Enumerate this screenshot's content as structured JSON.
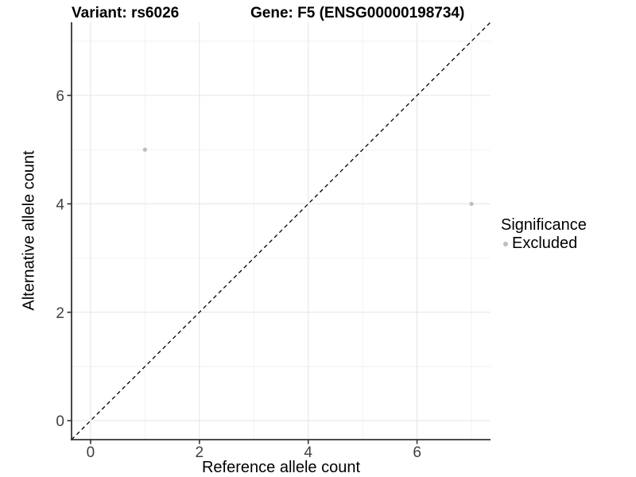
{
  "header": {
    "variant_label": "Variant: rs6026",
    "gene_label": "Gene: F5 (ENSG00000198734)"
  },
  "axes": {
    "x_title": "Reference allele count",
    "y_title": "Alternative allele count"
  },
  "legend": {
    "title": "Significance",
    "items": [
      {
        "label": "Excluded",
        "color": "#bdbdbd"
      }
    ]
  },
  "chart_data": {
    "type": "scatter",
    "title": "Variant: rs6026   Gene: F5 (ENSG00000198734)",
    "xlabel": "Reference allele count",
    "ylabel": "Alternative allele count",
    "xlim": [
      -0.35,
      7.35
    ],
    "ylim": [
      -0.35,
      7.35
    ],
    "x_ticks": [
      0,
      2,
      4,
      6
    ],
    "y_ticks": [
      0,
      2,
      4,
      6
    ],
    "x_minor_gridlines": [
      1,
      3,
      5,
      7
    ],
    "y_minor_gridlines": [
      1,
      3,
      5,
      7
    ],
    "grid": "major-and-minor",
    "legend_position": "right",
    "series": [
      {
        "name": "Excluded",
        "color": "#bdbdbd",
        "points": [
          [
            1,
            5
          ],
          [
            7,
            4
          ]
        ]
      }
    ],
    "identity_line": {
      "style": "dashed",
      "color": "#000000",
      "from": [
        -0.35,
        -0.35
      ],
      "to": [
        7.35,
        7.35
      ]
    }
  },
  "colors": {
    "background": "#ffffff",
    "major_grid": "#e4e4e4",
    "minor_grid": "#f2f2f2",
    "axis_line": "#333333",
    "tick_label": "#404040",
    "point": "#bdbdbd",
    "identity_line": "#000000"
  }
}
